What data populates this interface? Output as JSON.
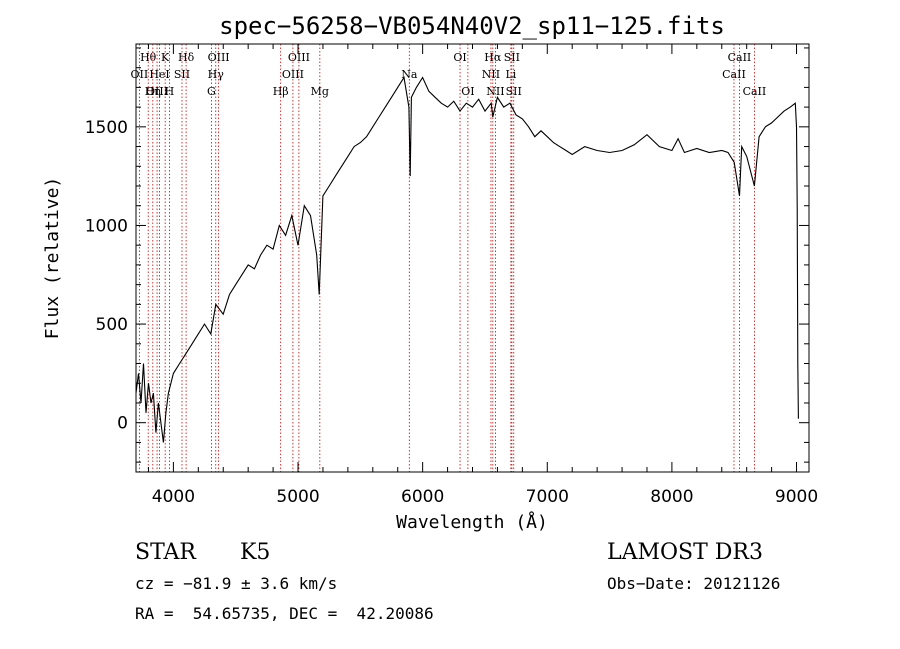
{
  "chart_data": {
    "type": "line",
    "title": "spec−56258−VB054N40V2_sp11−125.fits",
    "xlabel": "Wavelength (Å)",
    "ylabel": "Flux (relative)",
    "xlim": [
      3700,
      9100
    ],
    "ylim": [
      -250,
      1920
    ],
    "x_ticks": [
      4000,
      5000,
      6000,
      7000,
      8000,
      9000
    ],
    "x_tick_labels": [
      "4000",
      "5000",
      "6000",
      "7000",
      "8000",
      "9000"
    ],
    "y_ticks": [
      0,
      500,
      1000,
      1500
    ],
    "y_tick_labels": [
      "0",
      "500",
      "1000",
      "1500"
    ],
    "grid": false,
    "series": [
      {
        "name": "spectrum",
        "x": [
          3700,
          3720,
          3740,
          3760,
          3780,
          3800,
          3820,
          3840,
          3860,
          3880,
          3900,
          3920,
          3940,
          3960,
          3980,
          4000,
          4050,
          4100,
          4150,
          4200,
          4250,
          4300,
          4340,
          4400,
          4450,
          4500,
          4550,
          4600,
          4650,
          4700,
          4750,
          4800,
          4850,
          4900,
          4950,
          5000,
          5050,
          5100,
          5150,
          5170,
          5200,
          5250,
          5300,
          5350,
          5400,
          5450,
          5500,
          5550,
          5600,
          5650,
          5700,
          5750,
          5800,
          5850,
          5890,
          5900,
          5910,
          5950,
          6000,
          6050,
          6100,
          6150,
          6200,
          6250,
          6300,
          6350,
          6400,
          6450,
          6500,
          6550,
          6563,
          6600,
          6650,
          6700,
          6750,
          6800,
          6850,
          6900,
          6950,
          7000,
          7050,
          7100,
          7150,
          7200,
          7300,
          7400,
          7500,
          7600,
          7700,
          7800,
          7900,
          8000,
          8050,
          8100,
          8200,
          8300,
          8400,
          8450,
          8500,
          8542,
          8560,
          8600,
          8662,
          8700,
          8750,
          8800,
          8850,
          8900,
          8950,
          8990,
          9000,
          9005,
          9010,
          9015
        ],
        "values": [
          150,
          250,
          100,
          300,
          50,
          200,
          100,
          150,
          -50,
          100,
          0,
          -100,
          50,
          150,
          200,
          250,
          300,
          350,
          400,
          450,
          500,
          450,
          600,
          550,
          650,
          700,
          750,
          800,
          780,
          850,
          900,
          880,
          1000,
          950,
          1050,
          900,
          1100,
          1050,
          850,
          650,
          1150,
          1200,
          1250,
          1300,
          1350,
          1400,
          1420,
          1450,
          1500,
          1550,
          1600,
          1650,
          1700,
          1750,
          1600,
          1250,
          1650,
          1700,
          1750,
          1680,
          1650,
          1620,
          1600,
          1630,
          1580,
          1620,
          1600,
          1640,
          1580,
          1620,
          1550,
          1650,
          1600,
          1620,
          1560,
          1540,
          1500,
          1450,
          1480,
          1450,
          1420,
          1400,
          1380,
          1360,
          1400,
          1380,
          1370,
          1380,
          1410,
          1460,
          1400,
          1380,
          1440,
          1370,
          1390,
          1370,
          1380,
          1370,
          1320,
          1150,
          1400,
          1350,
          1200,
          1450,
          1500,
          1520,
          1550,
          1580,
          1600,
          1620,
          1500,
          1100,
          300,
          20
        ]
      }
    ],
    "lines": [
      {
        "label": "Hθ",
        "x": 3798,
        "row": 1
      },
      {
        "label": "OII",
        "x": 3727,
        "row": 2
      },
      {
        "label": "OIII",
        "x": 3869,
        "row": 3
      },
      {
        "label": "K",
        "x": 3934,
        "row": 1
      },
      {
        "label": "HeI",
        "x": 3889,
        "row": 2
      },
      {
        "label": "Hη",
        "x": 3835,
        "row": 3
      },
      {
        "label": "H",
        "x": 3968,
        "row": 3
      },
      {
        "label": "SII",
        "x": 4069,
        "row": 2
      },
      {
        "label": "Hδ",
        "x": 4102,
        "row": 1
      },
      {
        "label": "OIII",
        "x": 4363,
        "row": 1
      },
      {
        "label": "Hγ",
        "x": 4340,
        "row": 2
      },
      {
        "label": "G",
        "x": 4305,
        "row": 3
      },
      {
        "label": "Hβ",
        "x": 4861,
        "row": 3
      },
      {
        "label": "OIII",
        "x": 5007,
        "row": 1
      },
      {
        "label": "OIII",
        "x": 4959,
        "row": 2
      },
      {
        "label": "Mg",
        "x": 5175,
        "row": 3
      },
      {
        "label": "Na",
        "x": 5893,
        "row": 2
      },
      {
        "label": "OI",
        "x": 6300,
        "row": 1
      },
      {
        "label": "OI",
        "x": 6363,
        "row": 3
      },
      {
        "label": "Hα",
        "x": 6563,
        "row": 1
      },
      {
        "label": "NII",
        "x": 6548,
        "row": 2
      },
      {
        "label": "NII",
        "x": 6584,
        "row": 3
      },
      {
        "label": "SII",
        "x": 6716,
        "row": 1
      },
      {
        "label": "Li",
        "x": 6708,
        "row": 2
      },
      {
        "label": "SII",
        "x": 6731,
        "row": 3
      },
      {
        "label": "CaII",
        "x": 8542,
        "row": 1
      },
      {
        "label": "CaII",
        "x": 8498,
        "row": 2
      },
      {
        "label": "CaII",
        "x": 8662,
        "row": 3
      }
    ]
  },
  "info": {
    "class_label": "STAR",
    "subclass": "K5",
    "survey": "LAMOST DR3",
    "velocity": "cz = −81.9 ± 3.6 km/s",
    "obs_date": "Obs−Date: 20121126",
    "coords": "RA =  54.65735, DEC =  42.20086"
  },
  "colors": {
    "spectrum": "#000000",
    "line_markers": "#cc0000",
    "axes": "#000000"
  }
}
